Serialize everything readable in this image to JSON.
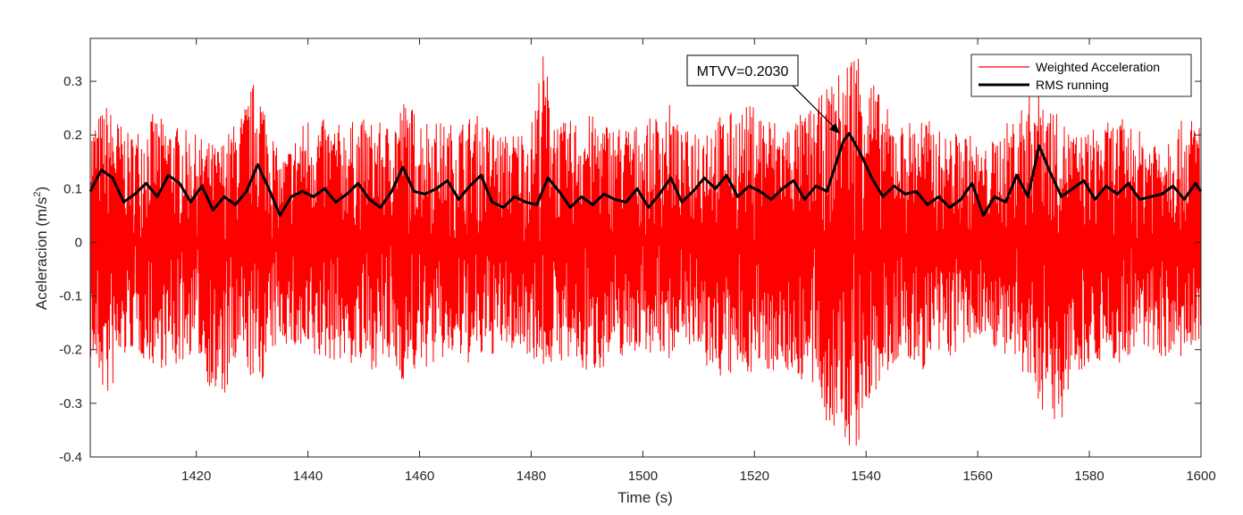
{
  "chart_data": {
    "type": "line",
    "title": "",
    "xlabel": "Time (s)",
    "ylabel_main": "Aceleracion (m/s",
    "ylabel_sup": "2",
    "ylabel_close": ")",
    "xlim": [
      1401,
      1600
    ],
    "ylim": [
      -0.4,
      0.38
    ],
    "xticks": [
      1420,
      1440,
      1460,
      1480,
      1500,
      1520,
      1540,
      1560,
      1580,
      1600
    ],
    "xtick_labels": [
      "1420",
      "1440",
      "1460",
      "1480",
      "1500",
      "1520",
      "1540",
      "1560",
      "1580",
      "1600"
    ],
    "yticks": [
      -0.4,
      -0.3,
      -0.2,
      -0.1,
      0,
      0.1,
      0.2,
      0.3
    ],
    "ytick_labels": [
      "-0.4",
      "-0.3",
      "-0.2",
      "-0.1",
      "0",
      "0.1",
      "0.2",
      "0.3"
    ],
    "grid": false,
    "legend_position": "top-right",
    "series": [
      {
        "name": "Weighted Acceleration",
        "color": "#ff0000",
        "kind": "dense-oscillation",
        "envelope_x": [
          1401,
          1404,
          1408,
          1412,
          1416,
          1420,
          1424,
          1428,
          1431,
          1435,
          1440,
          1445,
          1450,
          1454,
          1457,
          1460,
          1465,
          1470,
          1475,
          1480,
          1482,
          1485,
          1490,
          1495,
          1500,
          1505,
          1507,
          1510,
          1515,
          1520,
          1525,
          1530,
          1534,
          1536,
          1538,
          1540,
          1543,
          1546,
          1550,
          1554,
          1558,
          1561,
          1565,
          1568,
          1571,
          1574,
          1578,
          1582,
          1586,
          1590,
          1595,
          1600
        ],
        "envelope_upper": [
          0.22,
          0.26,
          0.2,
          0.24,
          0.22,
          0.2,
          0.18,
          0.24,
          0.32,
          0.15,
          0.24,
          0.22,
          0.23,
          0.22,
          0.27,
          0.24,
          0.22,
          0.24,
          0.2,
          0.22,
          0.36,
          0.22,
          0.24,
          0.22,
          0.22,
          0.26,
          0.2,
          0.23,
          0.24,
          0.26,
          0.22,
          0.25,
          0.3,
          0.33,
          0.38,
          0.34,
          0.26,
          0.22,
          0.24,
          0.2,
          0.21,
          0.17,
          0.22,
          0.26,
          0.32,
          0.24,
          0.2,
          0.22,
          0.23,
          0.2,
          0.22,
          0.24
        ],
        "envelope_lower": [
          -0.22,
          -0.3,
          -0.2,
          -0.23,
          -0.24,
          -0.2,
          -0.32,
          -0.22,
          -0.28,
          -0.18,
          -0.23,
          -0.22,
          -0.24,
          -0.23,
          -0.26,
          -0.24,
          -0.22,
          -0.23,
          -0.2,
          -0.21,
          -0.24,
          -0.22,
          -0.25,
          -0.22,
          -0.2,
          -0.22,
          -0.16,
          -0.23,
          -0.26,
          -0.24,
          -0.24,
          -0.27,
          -0.36,
          -0.38,
          -0.4,
          -0.33,
          -0.26,
          -0.22,
          -0.24,
          -0.22,
          -0.2,
          -0.17,
          -0.22,
          -0.26,
          -0.3,
          -0.36,
          -0.24,
          -0.22,
          -0.23,
          -0.2,
          -0.22,
          -0.22
        ]
      },
      {
        "name": "RMS running",
        "color": "#000000",
        "kind": "line",
        "x": [
          1401,
          1403,
          1405,
          1407,
          1409,
          1411,
          1413,
          1415,
          1417,
          1419,
          1421,
          1423,
          1425,
          1427,
          1429,
          1431,
          1433,
          1435,
          1437,
          1439,
          1441,
          1443,
          1445,
          1447,
          1449,
          1451,
          1453,
          1455,
          1457,
          1459,
          1461,
          1463,
          1465,
          1467,
          1469,
          1471,
          1473,
          1475,
          1477,
          1479,
          1481,
          1483,
          1485,
          1487,
          1489,
          1491,
          1493,
          1495,
          1497,
          1499,
          1501,
          1503,
          1505,
          1507,
          1509,
          1511,
          1513,
          1515,
          1517,
          1519,
          1521,
          1523,
          1525,
          1527,
          1529,
          1531,
          1533,
          1535,
          1536,
          1537,
          1539,
          1541,
          1543,
          1545,
          1547,
          1549,
          1551,
          1553,
          1555,
          1557,
          1559,
          1561,
          1563,
          1565,
          1567,
          1569,
          1571,
          1573,
          1575,
          1577,
          1579,
          1581,
          1583,
          1585,
          1587,
          1589,
          1591,
          1593,
          1595,
          1597,
          1599,
          1600
        ],
        "y": [
          0.095,
          0.135,
          0.12,
          0.075,
          0.09,
          0.11,
          0.085,
          0.125,
          0.11,
          0.075,
          0.105,
          0.06,
          0.085,
          0.07,
          0.095,
          0.145,
          0.1,
          0.05,
          0.085,
          0.095,
          0.085,
          0.1,
          0.075,
          0.09,
          0.11,
          0.08,
          0.065,
          0.095,
          0.14,
          0.095,
          0.09,
          0.1,
          0.115,
          0.08,
          0.105,
          0.125,
          0.075,
          0.065,
          0.085,
          0.075,
          0.07,
          0.12,
          0.095,
          0.065,
          0.085,
          0.07,
          0.09,
          0.08,
          0.075,
          0.1,
          0.065,
          0.09,
          0.12,
          0.075,
          0.095,
          0.12,
          0.1,
          0.125,
          0.085,
          0.105,
          0.095,
          0.08,
          0.1,
          0.115,
          0.08,
          0.105,
          0.095,
          0.16,
          0.19,
          0.203,
          0.165,
          0.12,
          0.085,
          0.105,
          0.09,
          0.095,
          0.07,
          0.085,
          0.065,
          0.08,
          0.11,
          0.05,
          0.085,
          0.075,
          0.125,
          0.085,
          0.18,
          0.13,
          0.085,
          0.1,
          0.115,
          0.08,
          0.105,
          0.09,
          0.11,
          0.08,
          0.085,
          0.09,
          0.105,
          0.08,
          0.11,
          0.095
        ]
      }
    ],
    "annotation": {
      "text": "MTVV=0.2030",
      "x": 1536,
      "y": 0.203
    }
  }
}
